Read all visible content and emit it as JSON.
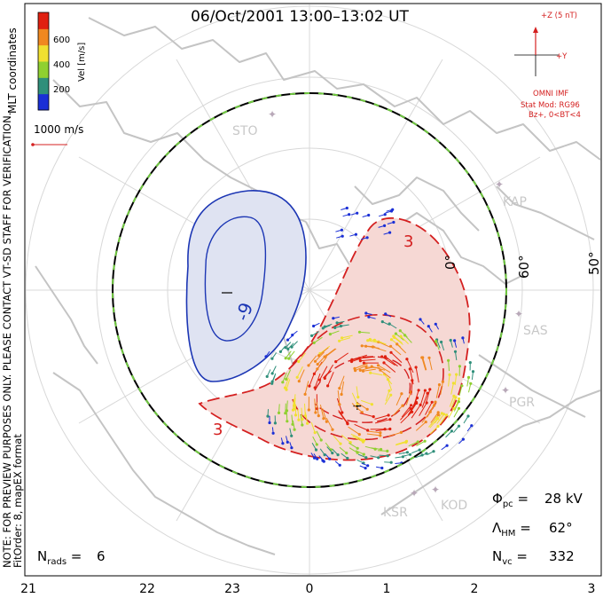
{
  "title": "06/Oct/2001 13:00–13:02 UT",
  "coordinates": "MLT coordinates",
  "notice_line1": "NOTE: FOR PREVIEW PURPOSES ONLY.  PLEASE CONTACT VT-SD STAFF FOR VERIFICATION.",
  "notice_line2": "FitOrder: 8,  mapEX format",
  "velocity_scale": {
    "label": "Vel [m/s]",
    "ticks": [
      "600",
      "400",
      "200"
    ],
    "colors": [
      "#1a2fd6",
      "#2f8f7a",
      "#8fd030",
      "#f0e030",
      "#f08820",
      "#e02010"
    ]
  },
  "reference_vector": "1000 m/s",
  "imf": {
    "z_label": "+Z (5 nT)",
    "y_label": "+Y",
    "source": "OMNI IMF",
    "model": "Stat Mod: RG96",
    "condition": "Bz+, 0<BT<4"
  },
  "latitude_labels": [
    "60°",
    "50°"
  ],
  "mlt_zero_label": "0°",
  "radars": [
    "STO",
    "KAP",
    "SAS",
    "PGR",
    "KOD",
    "KSR"
  ],
  "contour_labels": [
    "-9",
    "3",
    "3"
  ],
  "stats": {
    "phi_pc": "28 kV",
    "lambda_hm": "62°",
    "n_vc": "332",
    "n_rads": "6"
  },
  "mlt_axis": [
    "21",
    "22",
    "23",
    "0",
    "1",
    "2",
    "3"
  ],
  "colors": {
    "neg_fill": "#dfe3f2",
    "neg_line": "#1c36b4",
    "pos_fill": "#f6d8d4",
    "pos_line": "#d42020",
    "coast": "#c4c4c4",
    "grid": "#d8d8d8",
    "hm_boundary": "#70c840",
    "station": "#b8a8b8"
  }
}
